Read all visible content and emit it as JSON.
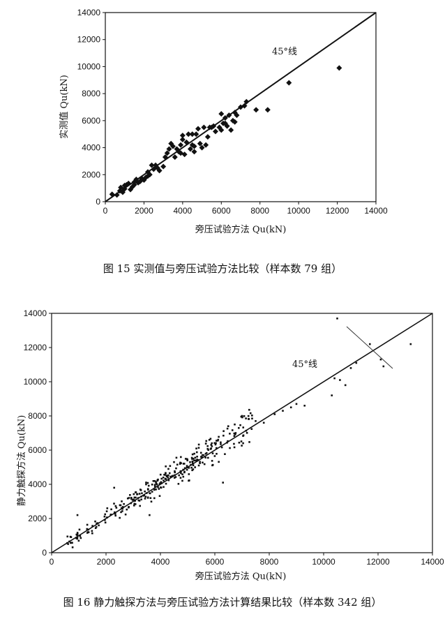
{
  "chart_data": [
    {
      "type": "scatter",
      "title": "",
      "caption": "图 15   实测值与旁压试验方法比较（样本数 79 组）",
      "xlabel": "旁压试验方法 Qu(kN)",
      "ylabel": "实测值 Qu(kN)",
      "xlim": [
        0,
        14000
      ],
      "ylim": [
        0,
        14000
      ],
      "xticks": [
        0,
        2000,
        4000,
        6000,
        8000,
        10000,
        12000,
        14000
      ],
      "yticks": [
        0,
        2000,
        4000,
        6000,
        8000,
        10000,
        12000,
        14000
      ],
      "reference_line": {
        "label": "45°线",
        "from": [
          0,
          0
        ],
        "to": [
          14000,
          14000
        ]
      },
      "marker": "diamond",
      "grid": false,
      "points": [
        [
          350,
          550
        ],
        [
          600,
          500
        ],
        [
          750,
          800
        ],
        [
          800,
          1050
        ],
        [
          900,
          700
        ],
        [
          1000,
          950
        ],
        [
          1100,
          1250
        ],
        [
          1200,
          1350
        ],
        [
          1300,
          900
        ],
        [
          1400,
          1100
        ],
        [
          1500,
          1250
        ],
        [
          1600,
          1650
        ],
        [
          1700,
          1400
        ],
        [
          1800,
          1500
        ],
        [
          1900,
          1700
        ],
        [
          2000,
          1600
        ],
        [
          2100,
          1800
        ],
        [
          2200,
          2200
        ],
        [
          2300,
          2000
        ],
        [
          2400,
          2700
        ],
        [
          2500,
          2400
        ],
        [
          2600,
          2700
        ],
        [
          2800,
          2300
        ],
        [
          3000,
          2600
        ],
        [
          3100,
          3300
        ],
        [
          3200,
          3600
        ],
        [
          3400,
          4300
        ],
        [
          3500,
          4100
        ],
        [
          3600,
          3300
        ],
        [
          3700,
          3900
        ],
        [
          3800,
          3700
        ],
        [
          3900,
          4200
        ],
        [
          4000,
          4900
        ],
        [
          4100,
          3500
        ],
        [
          4200,
          4400
        ],
        [
          4300,
          5000
        ],
        [
          4400,
          3900
        ],
        [
          4500,
          4200
        ],
        [
          4600,
          3700
        ],
        [
          4700,
          5000
        ],
        [
          4800,
          5400
        ],
        [
          4900,
          4300
        ],
        [
          5000,
          4000
        ],
        [
          5200,
          4200
        ],
        [
          5400,
          5500
        ],
        [
          5600,
          5600
        ],
        [
          5900,
          5500
        ],
        [
          6000,
          5300
        ],
        [
          6000,
          6500
        ],
        [
          6100,
          5800
        ],
        [
          6200,
          6200
        ],
        [
          6300,
          5600
        ],
        [
          6400,
          6400
        ],
        [
          6500,
          5300
        ],
        [
          6600,
          6000
        ],
        [
          6700,
          6600
        ],
        [
          6800,
          6400
        ],
        [
          7000,
          7000
        ],
        [
          7300,
          7400
        ],
        [
          7800,
          6800
        ],
        [
          8400,
          6800
        ],
        [
          9500,
          8800
        ],
        [
          12100,
          9900
        ],
        [
          4000,
          4600
        ],
        [
          5100,
          5500
        ],
        [
          5700,
          5200
        ],
        [
          6700,
          5900
        ],
        [
          3300,
          3900
        ],
        [
          2200,
          1900
        ],
        [
          1500,
          1450
        ],
        [
          4500,
          5000
        ],
        [
          6200,
          5800
        ],
        [
          5500,
          5500
        ],
        [
          3900,
          3600
        ],
        [
          2700,
          2500
        ],
        [
          1000,
          1200
        ],
        [
          4600,
          4100
        ],
        [
          5300,
          4800
        ],
        [
          7200,
          7100
        ]
      ]
    },
    {
      "type": "scatter",
      "title": "",
      "caption": "图 16   静力触探方法与旁压试验方法计算结果比较（样本数 342 组）",
      "xlabel": "旁压试验方法 Qu(kN)",
      "ylabel": "静力触探方法 Qu(kN)",
      "xlim": [
        0,
        14000
      ],
      "ylim": [
        0,
        14000
      ],
      "xticks": [
        0,
        2000,
        4000,
        6000,
        8000,
        10000,
        12000,
        14000
      ],
      "yticks": [
        0,
        2000,
        4000,
        6000,
        8000,
        10000,
        12000,
        14000
      ],
      "reference_line": {
        "label": "45°线",
        "from": [
          0,
          0
        ],
        "to": [
          14000,
          14000
        ]
      },
      "marker": "dot",
      "grid": false,
      "n_samples": 342,
      "outliers": [
        [
          950,
          2200
        ],
        [
          2300,
          3800
        ],
        [
          3600,
          2200
        ],
        [
          6300,
          4100
        ],
        [
          10500,
          13700
        ],
        [
          10300,
          9200
        ],
        [
          10400,
          10200
        ],
        [
          10600,
          10100
        ],
        [
          10800,
          9800
        ],
        [
          11000,
          10800
        ],
        [
          11200,
          11100
        ],
        [
          11700,
          12200
        ],
        [
          12100,
          11300
        ],
        [
          12200,
          10900
        ],
        [
          13200,
          12200
        ],
        [
          7000,
          8000
        ],
        [
          7500,
          7700
        ],
        [
          7800,
          7600
        ],
        [
          8200,
          8100
        ],
        [
          8500,
          8300
        ],
        [
          9300,
          8600
        ],
        [
          8800,
          8500
        ],
        [
          9000,
          8700
        ],
        [
          4500,
          5300
        ],
        [
          5800,
          6600
        ]
      ]
    }
  ]
}
